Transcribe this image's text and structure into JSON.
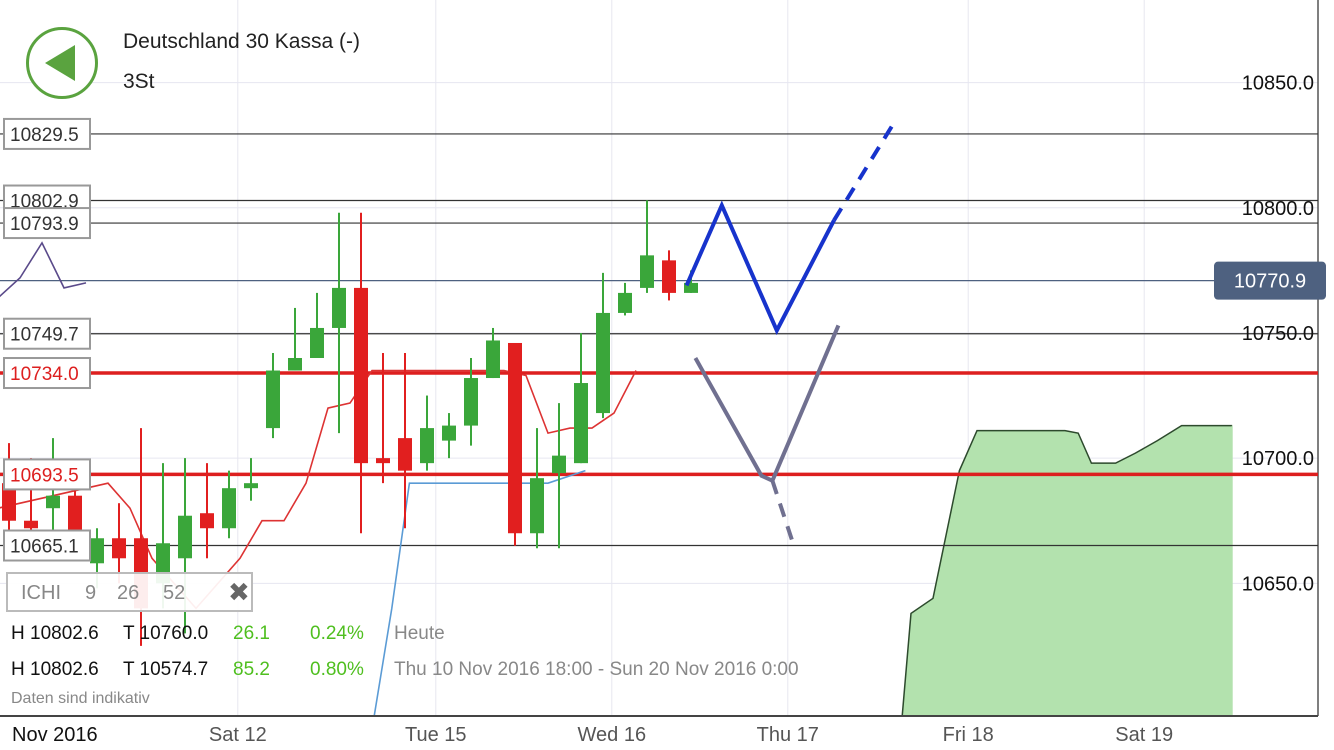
{
  "header": {
    "title": "Deutschland 30 Kassa (-)",
    "timeframe": "3St"
  },
  "colors": {
    "up_candle": "#3aa63a",
    "down_candle": "#e11f1f",
    "cloud_fill": "#b3e2ae",
    "support_line": "#dd1f1f",
    "projection_blue": "#1733cc",
    "projection_grey": "#707090",
    "price_tag": "#4e6180"
  },
  "indicator": {
    "name": "ICHI",
    "params": [
      "9",
      "26",
      "52"
    ]
  },
  "stats": [
    {
      "high": "H 10802.6",
      "low": "T 10760.0",
      "range": "26.1",
      "change": "0.24%",
      "period": "Heute"
    },
    {
      "high": "H 10802.6",
      "low": "T 10574.7",
      "range": "85.2",
      "change": "0.80%",
      "period": "Thu 10 Nov 2016 18:00 - Sun 20 Nov 2016 0:00"
    }
  ],
  "disclaimer": "Daten sind indikativ",
  "chart_data": {
    "type": "candlestick",
    "title": "Deutschland 30 Kassa (-)",
    "ylim": [
      10597,
      10883
    ],
    "y_ticks": [
      "10850.0",
      "10800.0",
      "10750.0",
      "10700.0",
      "10650.0"
    ],
    "x_ticks": [
      {
        "label": "Nov 2016",
        "slot": -0.5
      },
      {
        "label": "Sat 12",
        "slot": 10.4
      },
      {
        "label": "Tue 15",
        "slot": 19.4
      },
      {
        "label": "Wed 16",
        "slot": 27.4
      },
      {
        "label": "Thu 17",
        "slot": 35.4
      },
      {
        "label": "Fri 18",
        "slot": 43.6
      },
      {
        "label": "Sat 19",
        "slot": 51.6
      }
    ],
    "current_price": "10770.9",
    "level_lines": [
      {
        "value": 10829.5,
        "label": "10829.5",
        "color": "#333333",
        "label_color": "#333333"
      },
      {
        "value": 10802.9,
        "label": "10802.9",
        "color": "#333333",
        "label_color": "#333333"
      },
      {
        "value": 10793.9,
        "label": "10793.9",
        "color": "#333333",
        "label_color": "#333333"
      },
      {
        "value": 10749.7,
        "label": "10749.7",
        "color": "#333333",
        "label_color": "#333333"
      },
      {
        "value": 10734.0,
        "label": "10734.0",
        "color": "#dd1f1f",
        "label_color": "#dd1f1f"
      },
      {
        "value": 10693.5,
        "label": "10693.5",
        "color": "#dd1f1f",
        "label_color": "#dd1f1f"
      },
      {
        "value": 10665.1,
        "label": "10665.1",
        "color": "#333333",
        "label_color": "#333333"
      }
    ],
    "candles": [
      {
        "o": 10690,
        "h": 10706,
        "l": 10660,
        "c": 10675
      },
      {
        "o": 10675,
        "h": 10700,
        "l": 10665,
        "c": 10672
      },
      {
        "o": 10680,
        "h": 10708,
        "l": 10668,
        "c": 10685
      },
      {
        "o": 10685,
        "h": 10696,
        "l": 10662,
        "c": 10670
      },
      {
        "o": 10658,
        "h": 10672,
        "l": 10648,
        "c": 10668
      },
      {
        "o": 10668,
        "h": 10682,
        "l": 10650,
        "c": 10660
      },
      {
        "o": 10668,
        "h": 10712,
        "l": 10625,
        "c": 10640
      },
      {
        "o": 10650,
        "h": 10698,
        "l": 10640,
        "c": 10666
      },
      {
        "o": 10660,
        "h": 10700,
        "l": 10630,
        "c": 10677
      },
      {
        "o": 10678,
        "h": 10698,
        "l": 10660,
        "c": 10672
      },
      {
        "o": 10672,
        "h": 10695,
        "l": 10668,
        "c": 10688
      },
      {
        "o": 10688,
        "h": 10700,
        "l": 10683,
        "c": 10690
      },
      {
        "o": 10712,
        "h": 10742,
        "l": 10708,
        "c": 10735
      },
      {
        "o": 10735,
        "h": 10760,
        "l": 10735,
        "c": 10740
      },
      {
        "o": 10740,
        "h": 10766,
        "l": 10740,
        "c": 10752
      },
      {
        "o": 10752,
        "h": 10798,
        "l": 10710,
        "c": 10768
      },
      {
        "o": 10768,
        "h": 10798,
        "l": 10670,
        "c": 10698
      },
      {
        "o": 10700,
        "h": 10742,
        "l": 10690,
        "c": 10698
      },
      {
        "o": 10708,
        "h": 10742,
        "l": 10672,
        "c": 10695
      },
      {
        "o": 10698,
        "h": 10725,
        "l": 10695,
        "c": 10712
      },
      {
        "o": 10707,
        "h": 10718,
        "l": 10700,
        "c": 10713
      },
      {
        "o": 10713,
        "h": 10740,
        "l": 10705,
        "c": 10732
      },
      {
        "o": 10732,
        "h": 10752,
        "l": 10732,
        "c": 10747
      },
      {
        "o": 10746,
        "h": 10746,
        "l": 10665,
        "c": 10670
      },
      {
        "o": 10670,
        "h": 10712,
        "l": 10664,
        "c": 10692
      },
      {
        "o": 10694,
        "h": 10722,
        "l": 10664,
        "c": 10701
      },
      {
        "o": 10698,
        "h": 10750,
        "l": 10698,
        "c": 10730
      },
      {
        "o": 10718,
        "h": 10774,
        "l": 10716,
        "c": 10758
      },
      {
        "o": 10758,
        "h": 10770,
        "l": 10757,
        "c": 10766
      },
      {
        "o": 10768,
        "h": 10803,
        "l": 10766,
        "c": 10781
      },
      {
        "o": 10779,
        "h": 10783,
        "l": 10763,
        "c": 10766
      },
      {
        "o": 10766,
        "h": 10775,
        "l": 10766,
        "c": 10770
      }
    ],
    "cloud": [
      {
        "slot": 40.6,
        "value": 10597
      },
      {
        "slot": 41.0,
        "value": 10638
      },
      {
        "slot": 42.0,
        "value": 10644
      },
      {
        "slot": 43.2,
        "value": 10695
      },
      {
        "slot": 44.0,
        "value": 10711
      },
      {
        "slot": 48.0,
        "value": 10711
      },
      {
        "slot": 48.6,
        "value": 10710
      },
      {
        "slot": 49.2,
        "value": 10698
      },
      {
        "slot": 50.3,
        "value": 10698
      },
      {
        "slot": 51.2,
        "value": 10702
      },
      {
        "slot": 52.2,
        "value": 10707
      },
      {
        "slot": 53.3,
        "value": 10713
      },
      {
        "slot": 55.6,
        "value": 10713
      }
    ],
    "indicator_lines": [
      {
        "name": "",
        "color": "#5a4a8a",
        "points": [
          [
            -0.5,
            10764
          ],
          [
            0.5,
            10772
          ],
          [
            1.5,
            10786
          ],
          [
            2.5,
            10768
          ],
          [
            3.5,
            10770
          ]
        ]
      },
      {
        "name": "",
        "color": "#dd3333",
        "points": [
          [
            -0.5,
            10680
          ],
          [
            4.5,
            10690
          ],
          [
            5.5,
            10680
          ],
          [
            6.5,
            10660
          ],
          [
            8.5,
            10640
          ],
          [
            10.5,
            10660
          ],
          [
            11.5,
            10675
          ],
          [
            12.5,
            10675
          ],
          [
            13.5,
            10690
          ],
          [
            14.5,
            10720
          ],
          [
            15.5,
            10722
          ],
          [
            16.5,
            10735
          ],
          [
            17.5,
            10735
          ],
          [
            21.5,
            10735
          ],
          [
            22.5,
            10735
          ],
          [
            23.5,
            10733
          ],
          [
            24.5,
            10710
          ],
          [
            25.5,
            10712
          ],
          [
            26.5,
            10712
          ],
          [
            27.5,
            10718
          ],
          [
            28.5,
            10735
          ]
        ]
      },
      {
        "name": "",
        "color": "#5b9bd5",
        "points": [
          [
            16.6,
            10597
          ],
          [
            17.4,
            10640
          ],
          [
            18.2,
            10690
          ],
          [
            24.5,
            10690
          ],
          [
            26.2,
            10695
          ]
        ]
      }
    ],
    "projections": [
      {
        "color": "#1733cc",
        "dashed": false,
        "points": [
          [
            30.8,
            10769
          ],
          [
            32.4,
            10801
          ],
          [
            34.9,
            10751
          ],
          [
            37.5,
            10795
          ]
        ]
      },
      {
        "color": "#1733cc",
        "dashed": true,
        "points": [
          [
            37.5,
            10795
          ],
          [
            40.3,
            10835
          ]
        ]
      },
      {
        "color": "#707090",
        "dashed": false,
        "points": [
          [
            31.2,
            10740
          ],
          [
            34.2,
            10693
          ],
          [
            34.7,
            10691
          ],
          [
            37.7,
            10753
          ]
        ]
      },
      {
        "color": "#707090",
        "dashed": true,
        "points": [
          [
            34.7,
            10691
          ],
          [
            35.6,
            10667
          ]
        ]
      }
    ]
  }
}
